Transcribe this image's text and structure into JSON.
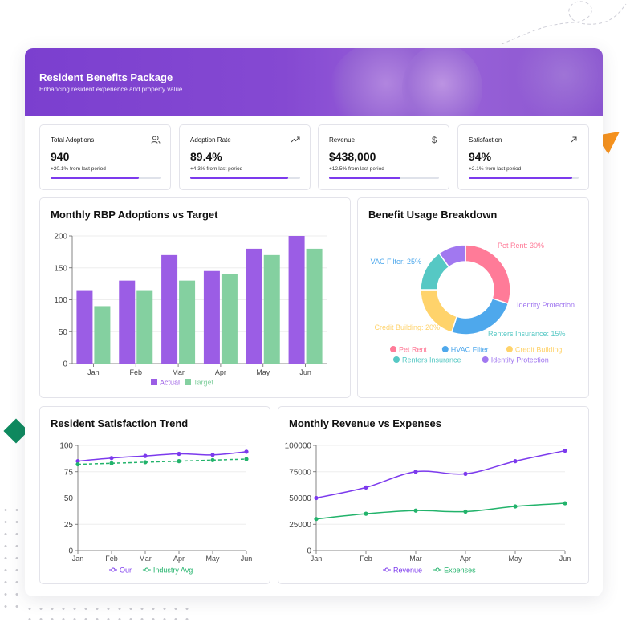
{
  "header": {
    "title": "Resident Benefits Package",
    "subtitle": "Enhancing resident experience and property value"
  },
  "stats": [
    {
      "label": "Total Adoptions",
      "value": "940",
      "delta": "+20.1% from last period",
      "icon": "users-icon",
      "progress": 0.8
    },
    {
      "label": "Adoption Rate",
      "value": "89.4%",
      "delta": "+4.3% from last period",
      "icon": "trending-up-icon",
      "progress": 0.894
    },
    {
      "label": "Revenue",
      "value": "$438,000",
      "delta": "+12.5% from last period",
      "icon": "dollar-icon",
      "progress": 0.65
    },
    {
      "label": "Satisfaction",
      "value": "94%",
      "delta": "+2.1% from last period",
      "icon": "arrow-up-right-icon",
      "progress": 0.94
    }
  ],
  "colors": {
    "accent": "#7c3aed",
    "bar_actual": "#9b5de5",
    "bar_target": "#84d0a0",
    "line_green": "#22b36b"
  },
  "panels": {
    "adoptions": {
      "title": "Monthly RBP Adoptions vs Target"
    },
    "usage": {
      "title": "Benefit Usage Breakdown"
    },
    "satisfaction": {
      "title": "Resident Satisfaction Trend"
    },
    "revenue": {
      "title": "Monthly Revenue vs Expenses"
    }
  },
  "chart_data": [
    {
      "type": "bar",
      "categories": [
        "Jan",
        "Feb",
        "Mar",
        "Apr",
        "May",
        "Jun"
      ],
      "series": [
        {
          "name": "Actual",
          "values": [
            115,
            130,
            170,
            145,
            180,
            200
          ],
          "color": "#9b5de5"
        },
        {
          "name": "Target",
          "values": [
            90,
            115,
            130,
            140,
            170,
            180
          ],
          "color": "#84d0a0"
        }
      ],
      "ylim": [
        0,
        200
      ],
      "yticks": [
        "0",
        "50",
        "100",
        "150",
        "200"
      ],
      "grid": true,
      "legend": "bottom"
    },
    {
      "type": "pie",
      "donut": true,
      "slices": [
        {
          "name": "Pet Rent",
          "value": 30,
          "label": "Pet Rent: 30%",
          "color": "#ff7b98"
        },
        {
          "name": "HVAC Filter",
          "value": 25,
          "label": "VAC Filter: 25%",
          "color": "#4ea8ec"
        },
        {
          "name": "Credit Building",
          "value": 20,
          "label": "Credit Building: 20%",
          "color": "#ffd36b"
        },
        {
          "name": "Renters Insurance",
          "value": 15,
          "label": "Renters Insurance: 15%",
          "color": "#56c8c4"
        },
        {
          "name": "Identity Protection",
          "value": 10,
          "label": "Identity Protection",
          "color": "#a178f0"
        }
      ],
      "legend": "bottom"
    },
    {
      "type": "line",
      "categories": [
        "Jan",
        "Feb",
        "Mar",
        "Apr",
        "May",
        "Jun"
      ],
      "series": [
        {
          "name": "Our",
          "values": [
            85,
            88,
            90,
            92,
            91,
            94
          ],
          "color": "#7c3aed",
          "dashed": false
        },
        {
          "name": "Industry Avg",
          "values": [
            82,
            83,
            84,
            85,
            86,
            87
          ],
          "color": "#22b36b",
          "dashed": true
        }
      ],
      "ylim": [
        0,
        100
      ],
      "yticks": [
        "0",
        "25",
        "50",
        "75",
        "100"
      ],
      "grid": true,
      "legend": "bottom"
    },
    {
      "type": "line",
      "categories": [
        "Jan",
        "Feb",
        "Mar",
        "Apr",
        "May",
        "Jun"
      ],
      "series": [
        {
          "name": "Revenue",
          "values": [
            50000,
            60000,
            75000,
            73000,
            85000,
            95000
          ],
          "color": "#7c3aed",
          "dashed": false
        },
        {
          "name": "Expenses",
          "values": [
            30000,
            35000,
            38000,
            37000,
            42000,
            45000
          ],
          "color": "#22b36b",
          "dashed": false
        }
      ],
      "ylim": [
        0,
        100000
      ],
      "yticks": [
        "0",
        "25000",
        "50000",
        "75000",
        "100000"
      ],
      "grid": true,
      "legend": "bottom"
    }
  ]
}
